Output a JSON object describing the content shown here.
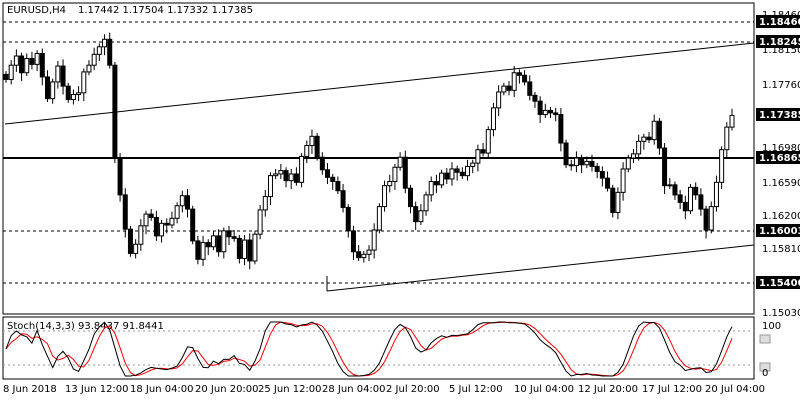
{
  "header": {
    "symbol": "EURUSD,H4",
    "ohlc": "1.17442 1.17504 1.17332 1.17385"
  },
  "levels": {
    "r1": "1.18460",
    "r2": "1.18245",
    "last_price": "1.17385",
    "pivot": "1.16865",
    "s1": "1.16003",
    "s2": "1.15400"
  },
  "price_axis_ticks": [
    "1.18460",
    "1.18150",
    "1.17760",
    "1.17385",
    "1.16980",
    "1.16865",
    "1.16590",
    "1.16200",
    "1.16003",
    "1.15810",
    "1.15400",
    "1.15030"
  ],
  "stoch": {
    "label": "Stoch(14,3,3) 93.8437 91.8441",
    "ticks": [
      "100",
      "80",
      "20",
      "0"
    ]
  },
  "time_axis": [
    "8 Jun 2018",
    "13 Jun 12:00",
    "18 Jun 04:00",
    "20 Jun 20:00",
    "25 Jun 12:00",
    "28 Jun 04:00",
    "2 Jul 20:00",
    "5 Jul 12:00",
    "10 Jul 04:00",
    "12 Jul 20:00",
    "17 Jul 12:00",
    "20 Jul 04:00"
  ],
  "colors": {
    "candle_up": "#000000",
    "candle_down": "#000000",
    "stoch_main": "#000000",
    "stoch_signal": "#ff0000",
    "tag_bg": "#000000"
  },
  "chart_data": {
    "type": "candlestick",
    "ylim": [
      1.1503,
      1.1864
    ],
    "closes": [
      1.1781,
      1.1798,
      1.1809,
      1.1789,
      1.1806,
      1.1799,
      1.1812,
      1.1784,
      1.1758,
      1.1778,
      1.1797,
      1.1773,
      1.1757,
      1.1763,
      1.1765,
      1.179,
      1.1798,
      1.1811,
      1.182,
      1.1829,
      1.1798,
      1.1687,
      1.1643,
      1.1602,
      1.1573,
      1.1584,
      1.1606,
      1.162,
      1.1616,
      1.1594,
      1.1609,
      1.1607,
      1.1615,
      1.163,
      1.1642,
      1.1626,
      1.1588,
      1.1566,
      1.1586,
      1.1581,
      1.1594,
      1.1575,
      1.16,
      1.1593,
      1.1591,
      1.1567,
      1.1589,
      1.1564,
      1.1596,
      1.1625,
      1.1641,
      1.1666,
      1.1668,
      1.1672,
      1.166,
      1.1668,
      1.1658,
      1.1689,
      1.1702,
      1.1713,
      1.1688,
      1.1673,
      1.1664,
      1.1659,
      1.1648,
      1.1628,
      1.16,
      1.1575,
      1.1568,
      1.1572,
      1.1577,
      1.1601,
      1.1629,
      1.1654,
      1.1659,
      1.1676,
      1.1688,
      1.1651,
      1.1629,
      1.1611,
      1.1624,
      1.1643,
      1.1659,
      1.1655,
      1.1669,
      1.1662,
      1.1674,
      1.167,
      1.1666,
      1.1677,
      1.1681,
      1.1697,
      1.1693,
      1.1721,
      1.1747,
      1.1766,
      1.1773,
      1.1768,
      1.1789,
      1.1786,
      1.1778,
      1.1762,
      1.1755,
      1.1739,
      1.1744,
      1.1741,
      1.1739,
      1.1705,
      1.1679,
      1.1678,
      1.1687,
      1.1679,
      1.1683,
      1.1677,
      1.1671,
      1.1663,
      1.1651,
      1.1622,
      1.1646,
      1.1674,
      1.1687,
      1.1692,
      1.1707,
      1.1712,
      1.1709,
      1.1731,
      1.1699,
      1.1654,
      1.1655,
      1.1643,
      1.1634,
      1.1624,
      1.1652,
      1.1643,
      1.1626,
      1.1601,
      1.1629,
      1.1658,
      1.1697,
      1.1724,
      1.1738
    ]
  }
}
